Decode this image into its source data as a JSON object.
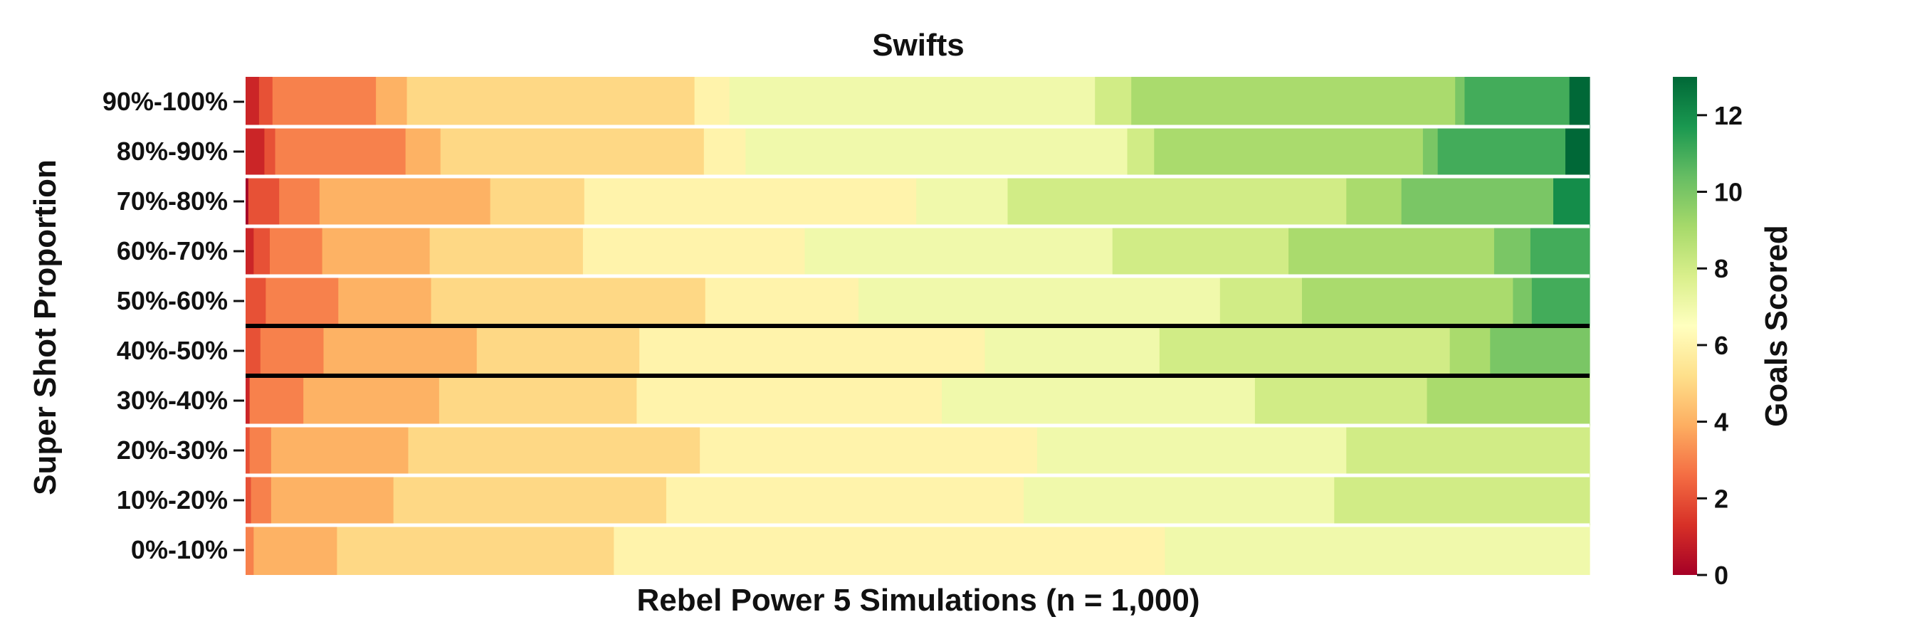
{
  "chart_data": {
    "type": "heatmap",
    "title": "Swifts",
    "xlabel": "Rebel Power 5 Simulations (n = 1,000)",
    "ylabel": "Super Shot Proportion",
    "colorbar": {
      "label": "Goals Scored",
      "colormap": "RdYlGn",
      "range": [
        0,
        13
      ],
      "ticks": [
        "0",
        "2",
        "4",
        "6",
        "8",
        "10",
        "12"
      ]
    },
    "highlighted_row": "40%-50%",
    "rows": [
      {
        "label": "90%-100%",
        "segments": [
          {
            "goals": 1,
            "count": 10
          },
          {
            "goals": 2,
            "count": 10
          },
          {
            "goals": 3,
            "count": 77
          },
          {
            "goals": 4,
            "count": 23
          },
          {
            "goals": 5,
            "count": 214
          },
          {
            "goals": 6,
            "count": 26
          },
          {
            "goals": 7,
            "count": 272
          },
          {
            "goals": 8,
            "count": 27
          },
          {
            "goals": 9,
            "count": 241
          },
          {
            "goals": 10,
            "count": 7
          },
          {
            "goals": 11,
            "count": 78
          },
          {
            "goals": 13,
            "count": 15
          }
        ]
      },
      {
        "label": "80%-90%",
        "segments": [
          {
            "goals": 1,
            "count": 14
          },
          {
            "goals": 2,
            "count": 8
          },
          {
            "goals": 3,
            "count": 97
          },
          {
            "goals": 4,
            "count": 26
          },
          {
            "goals": 5,
            "count": 196
          },
          {
            "goals": 6,
            "count": 31
          },
          {
            "goals": 7,
            "count": 284
          },
          {
            "goals": 8,
            "count": 20
          },
          {
            "goals": 9,
            "count": 200
          },
          {
            "goals": 10,
            "count": 11
          },
          {
            "goals": 11,
            "count": 95
          },
          {
            "goals": 13,
            "count": 18
          }
        ]
      },
      {
        "label": "70%-80%",
        "segments": [
          {
            "goals": 0,
            "count": 2
          },
          {
            "goals": 2,
            "count": 23
          },
          {
            "goals": 3,
            "count": 30
          },
          {
            "goals": 4,
            "count": 127
          },
          {
            "goals": 5,
            "count": 70
          },
          {
            "goals": 6,
            "count": 247
          },
          {
            "goals": 7,
            "count": 68
          },
          {
            "goals": 8,
            "count": 252
          },
          {
            "goals": 9,
            "count": 41
          },
          {
            "goals": 10,
            "count": 113
          },
          {
            "goals": 12,
            "count": 27
          }
        ]
      },
      {
        "label": "60%-70%",
        "segments": [
          {
            "goals": 1,
            "count": 6
          },
          {
            "goals": 2,
            "count": 12
          },
          {
            "goals": 3,
            "count": 39
          },
          {
            "goals": 4,
            "count": 80
          },
          {
            "goals": 5,
            "count": 114
          },
          {
            "goals": 6,
            "count": 165
          },
          {
            "goals": 7,
            "count": 229
          },
          {
            "goals": 8,
            "count": 131
          },
          {
            "goals": 9,
            "count": 153
          },
          {
            "goals": 10,
            "count": 27
          },
          {
            "goals": 11,
            "count": 44
          }
        ]
      },
      {
        "label": "50%-60%",
        "segments": [
          {
            "goals": 2,
            "count": 15
          },
          {
            "goals": 3,
            "count": 54
          },
          {
            "goals": 4,
            "count": 69
          },
          {
            "goals": 5,
            "count": 204
          },
          {
            "goals": 6,
            "count": 114
          },
          {
            "goals": 7,
            "count": 269
          },
          {
            "goals": 8,
            "count": 61
          },
          {
            "goals": 9,
            "count": 157
          },
          {
            "goals": 10,
            "count": 14
          },
          {
            "goals": 11,
            "count": 43
          }
        ]
      },
      {
        "label": "40%-50%",
        "segments": [
          {
            "goals": 2,
            "count": 11
          },
          {
            "goals": 3,
            "count": 47
          },
          {
            "goals": 4,
            "count": 114
          },
          {
            "goals": 5,
            "count": 121
          },
          {
            "goals": 6,
            "count": 257
          },
          {
            "goals": 7,
            "count": 130
          },
          {
            "goals": 8,
            "count": 216
          },
          {
            "goals": 9,
            "count": 30
          },
          {
            "goals": 10,
            "count": 74
          }
        ]
      },
      {
        "label": "30%-40%",
        "segments": [
          {
            "goals": 1,
            "count": 3
          },
          {
            "goals": 3,
            "count": 40
          },
          {
            "goals": 4,
            "count": 101
          },
          {
            "goals": 5,
            "count": 147
          },
          {
            "goals": 6,
            "count": 227
          },
          {
            "goals": 7,
            "count": 233
          },
          {
            "goals": 8,
            "count": 128
          },
          {
            "goals": 9,
            "count": 121
          }
        ]
      },
      {
        "label": "20%-30%",
        "segments": [
          {
            "goals": 2,
            "count": 3
          },
          {
            "goals": 3,
            "count": 16
          },
          {
            "goals": 4,
            "count": 102
          },
          {
            "goals": 5,
            "count": 217
          },
          {
            "goals": 6,
            "count": 251
          },
          {
            "goals": 7,
            "count": 230
          },
          {
            "goals": 8,
            "count": 181
          }
        ]
      },
      {
        "label": "10%-20%",
        "segments": [
          {
            "goals": 2,
            "count": 4
          },
          {
            "goals": 3,
            "count": 15
          },
          {
            "goals": 4,
            "count": 91
          },
          {
            "goals": 5,
            "count": 203
          },
          {
            "goals": 6,
            "count": 266
          },
          {
            "goals": 7,
            "count": 231
          },
          {
            "goals": 8,
            "count": 190
          }
        ]
      },
      {
        "label": "0%-10%",
        "segments": [
          {
            "goals": 3,
            "count": 6
          },
          {
            "goals": 4,
            "count": 62
          },
          {
            "goals": 5,
            "count": 206
          },
          {
            "goals": 6,
            "count": 410
          },
          {
            "goals": 7,
            "count": 316
          }
        ]
      }
    ]
  }
}
